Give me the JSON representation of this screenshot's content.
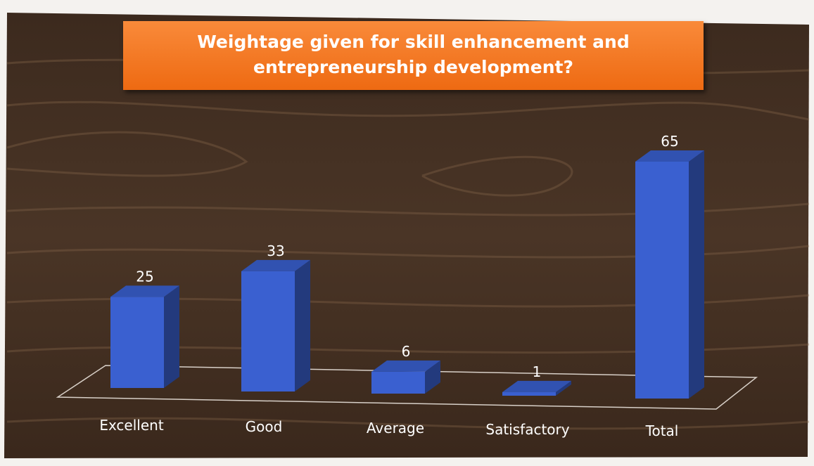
{
  "chart_data": {
    "type": "bar",
    "title": "Weightage given for skill enhancement and entrepreneurship development?",
    "categories": [
      "Excellent",
      "Good",
      "Average",
      "Satisfactory",
      "Total"
    ],
    "values": [
      25,
      33,
      6,
      1,
      65
    ],
    "color": "#3a60d0"
  }
}
